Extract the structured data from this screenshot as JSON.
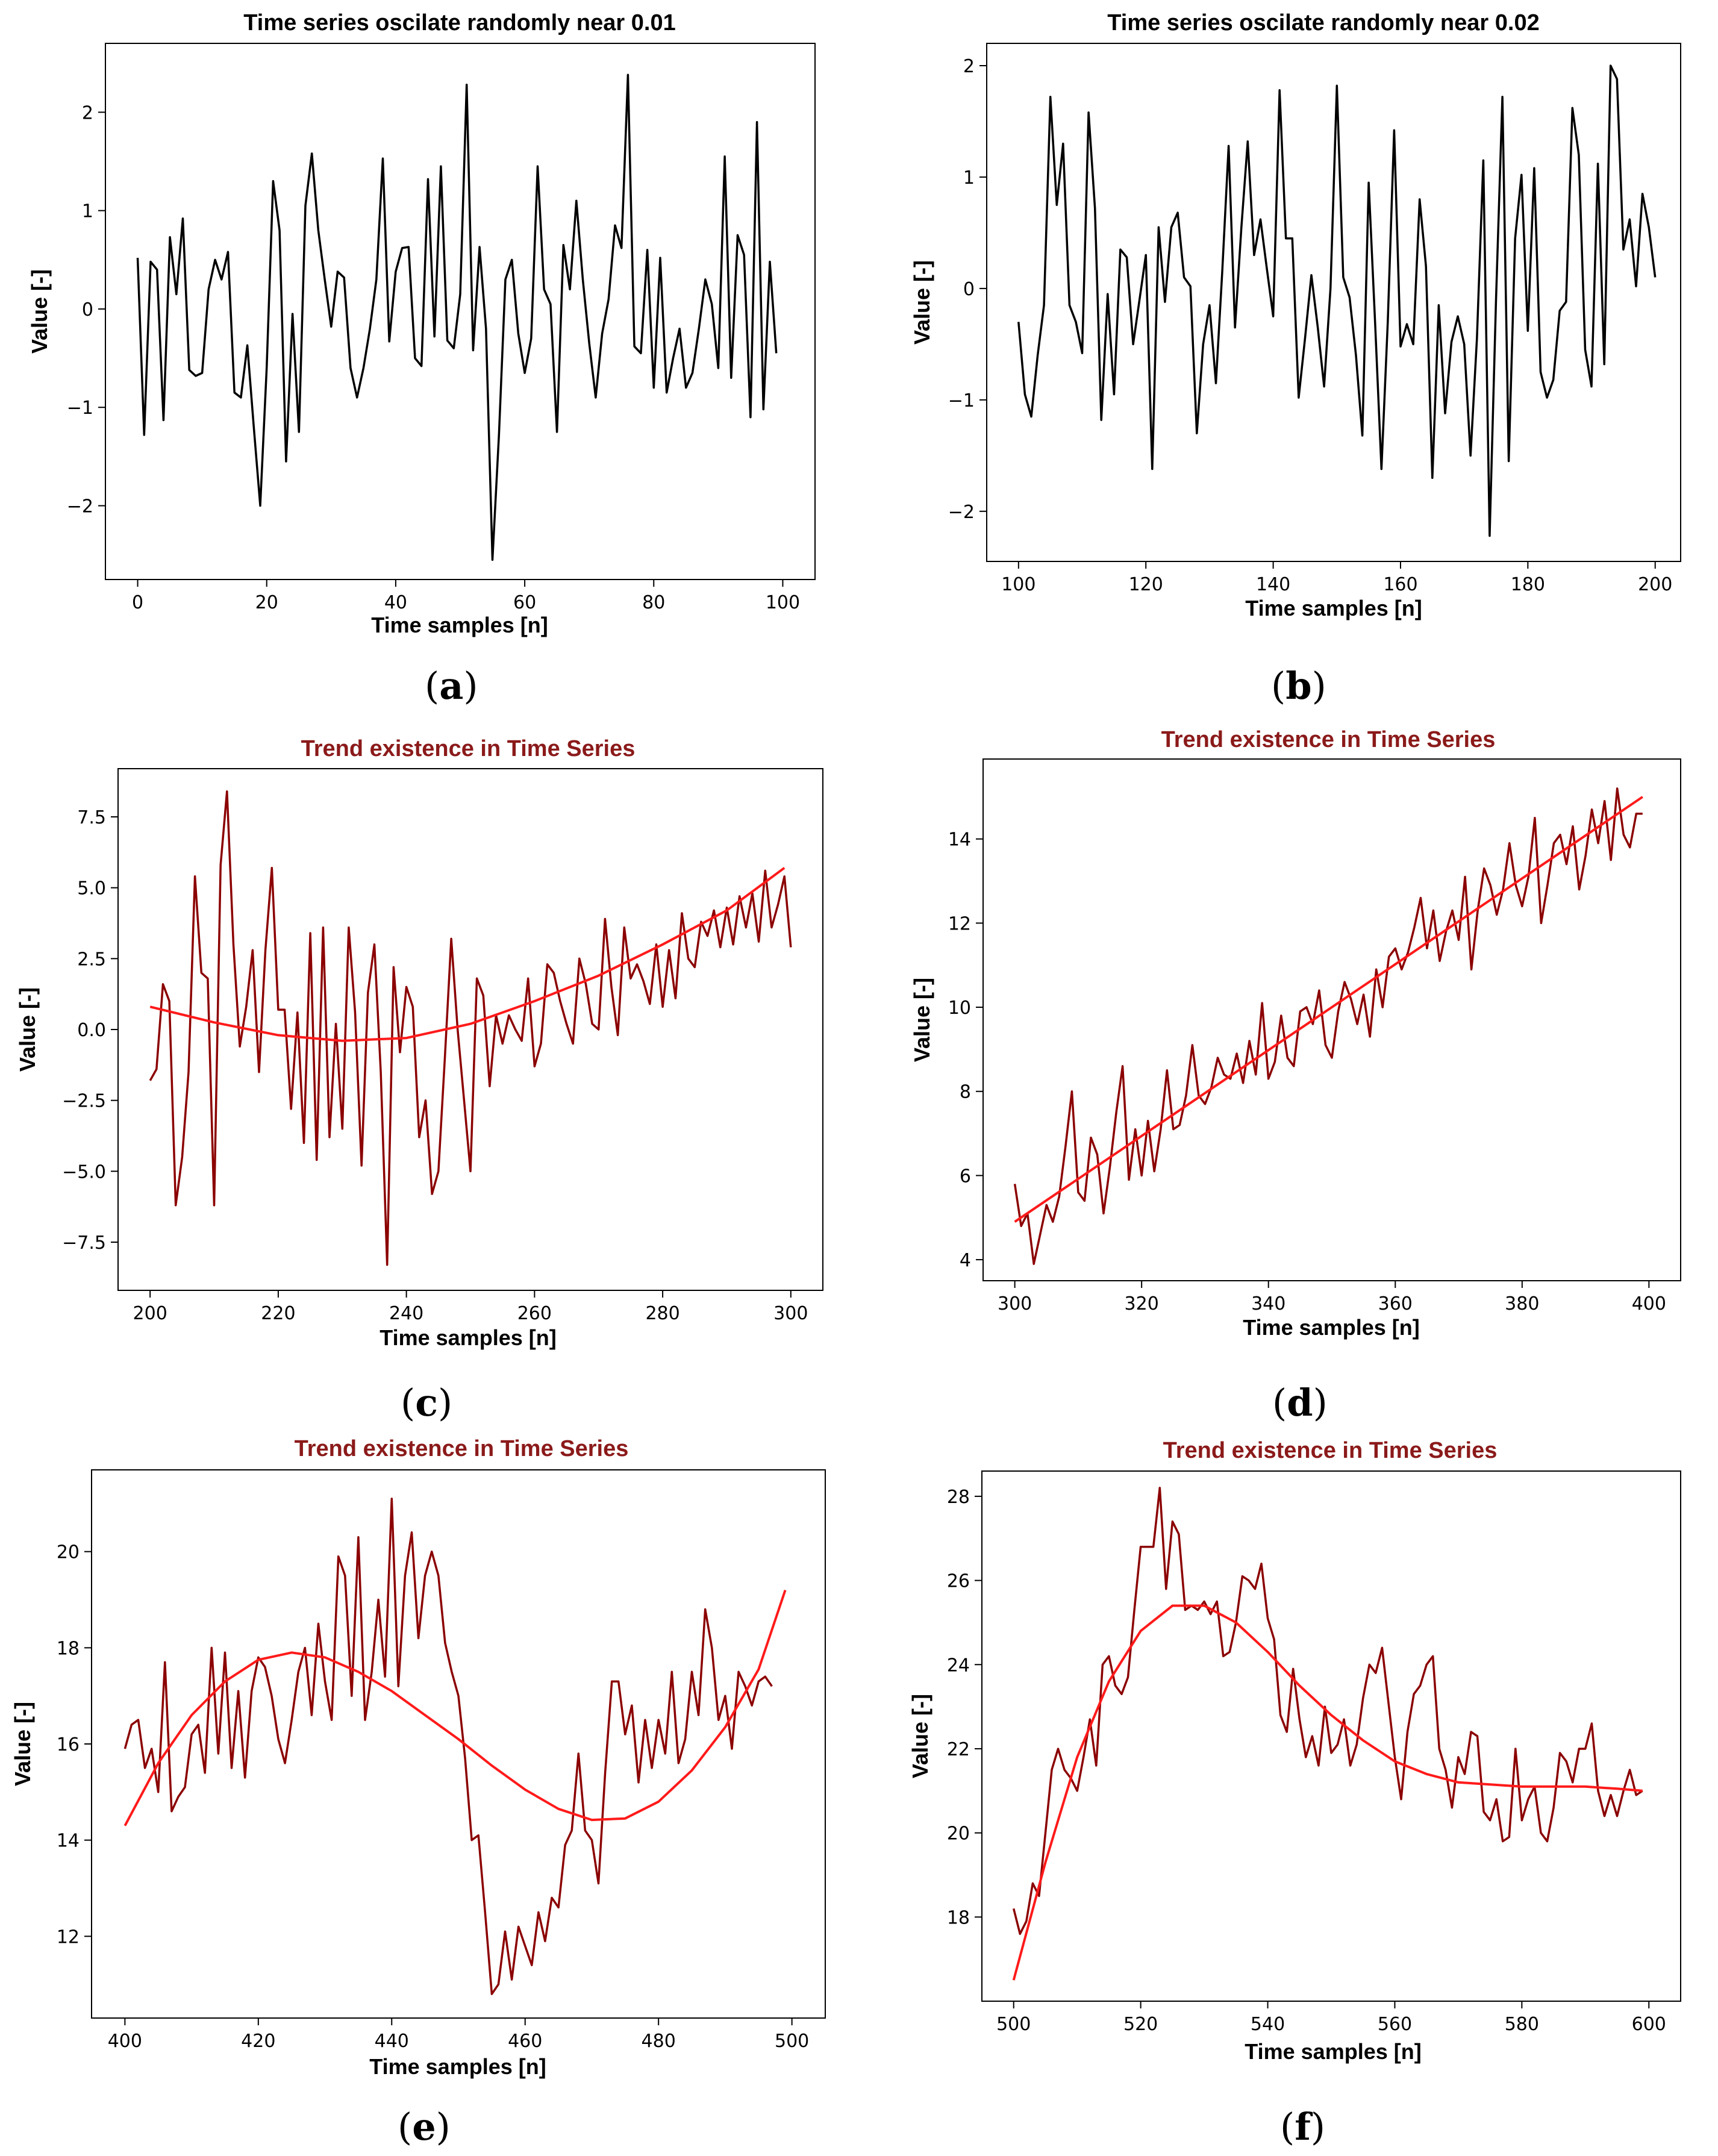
{
  "figure": {
    "colors": {
      "plain_line": "#000000",
      "data_line": "#8b0000",
      "trend_line": "#ff1a1a",
      "trend_title": "#8b1a1a"
    }
  },
  "chart_data": [
    {
      "id": "a",
      "panel_label": "a",
      "type": "line",
      "title": "Time series oscilate randomly near 0.01",
      "title_color": "#000000",
      "xlabel": "Time samples [n]",
      "ylabel": "Value [-]",
      "xlim": [
        -5,
        105
      ],
      "ylim": [
        -2.75,
        2.7
      ],
      "xticks": [
        0,
        20,
        40,
        60,
        80,
        100
      ],
      "yticks": [
        -2,
        -1,
        0,
        1,
        2
      ],
      "x_start": 0,
      "series": [
        {
          "name": "signal",
          "color": "#000000",
          "values": [
            0.52,
            -1.28,
            0.48,
            0.4,
            -1.13,
            0.73,
            0.15,
            0.92,
            -0.62,
            -0.68,
            -0.65,
            0.2,
            0.5,
            0.3,
            0.58,
            -0.85,
            -0.9,
            -0.37,
            -1.2,
            -2.0,
            -0.6,
            1.3,
            0.8,
            -1.55,
            -0.05,
            -1.25,
            1.05,
            1.58,
            0.8,
            0.3,
            -0.18,
            0.38,
            0.32,
            -0.6,
            -0.9,
            -0.6,
            -0.2,
            0.3,
            1.53,
            -0.33,
            0.38,
            0.62,
            0.63,
            -0.5,
            -0.58,
            1.32,
            -0.28,
            1.45,
            -0.32,
            -0.4,
            0.15,
            2.28,
            -0.42,
            0.63,
            -0.2,
            -2.55,
            -1.28,
            0.3,
            0.5,
            -0.25,
            -0.65,
            -0.3,
            1.45,
            0.2,
            0.05,
            -1.25,
            0.65,
            0.2,
            1.1,
            0.3,
            -0.35,
            -0.9,
            -0.25,
            0.1,
            0.85,
            0.62,
            2.38,
            -0.38,
            -0.45,
            0.6,
            -0.8,
            0.52,
            -0.85,
            -0.5,
            -0.2,
            -0.8,
            -0.65,
            -0.2,
            0.3,
            0.05,
            -0.6,
            1.55,
            -0.7,
            0.75,
            0.55,
            -1.1,
            1.9,
            -1.02,
            0.48,
            -0.45
          ]
        }
      ]
    },
    {
      "id": "b",
      "panel_label": "b",
      "type": "line",
      "title": "Time series oscilate randomly near 0.02",
      "title_color": "#000000",
      "xlabel": "Time samples [n]",
      "ylabel": "Value [-]",
      "xlim": [
        95,
        204
      ],
      "ylim": [
        -2.45,
        2.2
      ],
      "xticks": [
        100,
        120,
        140,
        160,
        180,
        200
      ],
      "yticks": [
        -2,
        -1,
        0,
        1,
        2
      ],
      "x_start": 100,
      "series": [
        {
          "name": "signal",
          "color": "#000000",
          "values": [
            -0.3,
            -0.95,
            -1.15,
            -0.6,
            -0.15,
            1.72,
            0.75,
            1.3,
            -0.15,
            -0.3,
            -0.58,
            1.58,
            0.72,
            -1.18,
            -0.05,
            -0.95,
            0.35,
            0.28,
            -0.5,
            -0.1,
            0.3,
            -1.62,
            0.55,
            -0.12,
            0.55,
            0.68,
            0.1,
            0.02,
            -1.3,
            -0.5,
            -0.15,
            -0.85,
            0.15,
            1.28,
            -0.35,
            0.55,
            1.32,
            0.3,
            0.62,
            0.18,
            -0.25,
            1.78,
            0.45,
            0.45,
            -0.98,
            -0.45,
            0.12,
            -0.35,
            -0.88,
            0.0,
            1.82,
            0.1,
            -0.08,
            -0.6,
            -1.32,
            0.95,
            -0.3,
            -1.62,
            -0.3,
            1.42,
            -0.52,
            -0.32,
            -0.5,
            0.8,
            0.2,
            -1.7,
            -0.15,
            -1.12,
            -0.48,
            -0.25,
            -0.5,
            -1.5,
            -0.45,
            1.15,
            -2.22,
            -0.1,
            1.72,
            -1.55,
            0.45,
            1.02,
            -0.38,
            1.08,
            -0.75,
            -0.98,
            -0.82,
            -0.2,
            -0.12,
            1.62,
            1.2,
            -0.55,
            -0.88,
            1.12,
            -0.68,
            2.0,
            1.88,
            0.35,
            0.62,
            0.02,
            0.85,
            0.55,
            0.1
          ]
        }
      ]
    },
    {
      "id": "c",
      "panel_label": "c",
      "type": "line",
      "title": "Trend existence in Time Series",
      "title_color": "#8b1a1a",
      "xlabel": "Time samples [n]",
      "ylabel": "Value [-]",
      "xlim": [
        195,
        305
      ],
      "ylim": [
        -9.2,
        9.2
      ],
      "xticks": [
        200,
        220,
        240,
        260,
        280,
        300
      ],
      "yticks": [
        -7.5,
        -5.0,
        -2.5,
        0.0,
        2.5,
        5.0,
        7.5
      ],
      "ytick_labels": [
        "−7.5",
        "−5.0",
        "−2.5",
        "0.0",
        "2.5",
        "5.0",
        "7.5"
      ],
      "x_start": 200,
      "series": [
        {
          "name": "observed",
          "color": "#8b0000",
          "values": [
            -1.8,
            -1.4,
            1.6,
            1.0,
            -6.2,
            -4.5,
            -1.5,
            5.4,
            2.0,
            1.8,
            -6.2,
            5.8,
            8.4,
            3.0,
            -0.6,
            0.8,
            2.8,
            -1.5,
            2.8,
            5.7,
            0.7,
            0.7,
            -2.8,
            0.6,
            -4.0,
            3.4,
            -4.6,
            3.6,
            -3.8,
            0.2,
            -3.5,
            3.6,
            0.6,
            -4.8,
            1.3,
            3.0,
            -1.5,
            -8.3,
            2.2,
            -0.8,
            1.5,
            0.8,
            -3.8,
            -2.5,
            -5.8,
            -5.0,
            -1.0,
            3.2,
            0.0,
            -2.5,
            -5.0,
            1.8,
            1.2,
            -2.0,
            0.5,
            -0.5,
            0.5,
            0.0,
            -0.4,
            1.8,
            -1.3,
            -0.5,
            2.3,
            2.0,
            1.0,
            0.2,
            -0.5,
            2.5,
            1.6,
            0.2,
            0.0,
            3.9,
            1.5,
            -0.2,
            3.6,
            1.8,
            2.3,
            1.7,
            0.9,
            3.0,
            0.8,
            2.8,
            1.1,
            4.1,
            2.5,
            2.2,
            3.8,
            3.3,
            4.2,
            2.9,
            4.3,
            3.0,
            4.7,
            3.6,
            4.8,
            3.1,
            5.6,
            3.6,
            4.4,
            5.4,
            2.9
          ]
        },
        {
          "name": "trend",
          "color": "#ff1a1a",
          "points": [
            [
              200,
              0.8
            ],
            [
              210,
              0.25
            ],
            [
              220,
              -0.2
            ],
            [
              230,
              -0.4
            ],
            [
              240,
              -0.3
            ],
            [
              250,
              0.2
            ],
            [
              260,
              1.0
            ],
            [
              270,
              1.9
            ],
            [
              280,
              3.0
            ],
            [
              290,
              4.2
            ],
            [
              299,
              5.7
            ]
          ]
        }
      ]
    },
    {
      "id": "d",
      "panel_label": "d",
      "type": "line",
      "title": "Trend existence in Time Series",
      "title_color": "#8b1a1a",
      "xlabel": "Time samples [n]",
      "ylabel": "Value [-]",
      "xlim": [
        295,
        405
      ],
      "ylim": [
        3.5,
        15.9
      ],
      "xticks": [
        300,
        320,
        340,
        360,
        380,
        400
      ],
      "yticks": [
        4,
        6,
        8,
        10,
        12,
        14
      ],
      "x_start": 300,
      "series": [
        {
          "name": "observed",
          "color": "#8b0000",
          "values": [
            5.8,
            4.8,
            5.1,
            3.9,
            4.6,
            5.3,
            4.9,
            5.5,
            6.7,
            8.0,
            5.6,
            5.4,
            6.9,
            6.5,
            5.1,
            6.2,
            7.5,
            8.6,
            5.9,
            7.1,
            6.0,
            7.3,
            6.1,
            7.1,
            8.5,
            7.1,
            7.2,
            7.9,
            9.1,
            7.9,
            7.7,
            8.1,
            8.8,
            8.4,
            8.3,
            8.9,
            8.2,
            9.2,
            8.4,
            10.1,
            8.3,
            8.7,
            9.8,
            8.8,
            8.6,
            9.9,
            10.0,
            9.6,
            10.4,
            9.1,
            8.8,
            9.9,
            10.6,
            10.2,
            9.6,
            10.3,
            9.3,
            10.9,
            10.0,
            11.2,
            11.4,
            10.9,
            11.3,
            11.9,
            12.6,
            11.4,
            12.3,
            11.1,
            11.8,
            12.3,
            11.6,
            13.1,
            10.9,
            12.3,
            13.3,
            12.9,
            12.2,
            12.8,
            13.9,
            12.9,
            12.4,
            13.1,
            14.5,
            12.0,
            12.9,
            13.9,
            14.1,
            13.4,
            14.3,
            12.8,
            13.6,
            14.7,
            13.9,
            14.9,
            13.5,
            15.2,
            14.1,
            13.8,
            14.6,
            14.6
          ]
        },
        {
          "name": "trend",
          "color": "#ff1a1a",
          "points": [
            [
              300,
              4.9
            ],
            [
              399,
              15.0
            ]
          ]
        }
      ]
    },
    {
      "id": "e",
      "panel_label": "e",
      "type": "line",
      "title": "Trend existence in Time Series",
      "title_color": "#8b1a1a",
      "xlabel": "Time samples [n]",
      "ylabel": "Value [-]",
      "xlim": [
        395,
        505
      ],
      "ylim": [
        10.3,
        21.7
      ],
      "xticks": [
        400,
        420,
        440,
        460,
        480,
        500
      ],
      "yticks": [
        12,
        14,
        16,
        18,
        20
      ],
      "x_start": 400,
      "series": [
        {
          "name": "observed",
          "color": "#8b0000",
          "values": [
            15.9,
            16.4,
            16.5,
            15.5,
            15.9,
            15.0,
            17.7,
            14.6,
            14.9,
            15.1,
            16.2,
            16.4,
            15.4,
            18.0,
            15.8,
            17.9,
            15.5,
            17.1,
            15.3,
            17.1,
            17.8,
            17.6,
            17.0,
            16.1,
            15.6,
            16.5,
            17.5,
            18.0,
            16.6,
            18.5,
            17.3,
            16.5,
            19.9,
            19.5,
            17.0,
            20.3,
            16.5,
            17.5,
            19.0,
            17.4,
            21.1,
            17.2,
            19.5,
            20.4,
            18.2,
            19.5,
            20.0,
            19.5,
            18.1,
            17.5,
            17.0,
            15.7,
            14.0,
            14.1,
            12.5,
            10.8,
            11.0,
            12.1,
            11.1,
            12.2,
            11.8,
            11.4,
            12.5,
            11.9,
            12.8,
            12.6,
            13.9,
            14.2,
            15.8,
            14.2,
            14.0,
            13.1,
            15.4,
            17.3,
            17.3,
            16.2,
            16.8,
            15.2,
            16.5,
            15.5,
            16.5,
            15.8,
            17.5,
            15.6,
            16.1,
            17.5,
            16.6,
            18.8,
            18.0,
            16.5,
            17.0,
            15.9,
            17.5,
            17.2,
            16.8,
            17.3,
            17.4,
            17.2
          ]
        },
        {
          "name": "trend",
          "color": "#ff1a1a",
          "points": [
            [
              400,
              14.3
            ],
            [
              405,
              15.6
            ],
            [
              410,
              16.6
            ],
            [
              415,
              17.3
            ],
            [
              420,
              17.75
            ],
            [
              425,
              17.9
            ],
            [
              430,
              17.8
            ],
            [
              435,
              17.5
            ],
            [
              440,
              17.1
            ],
            [
              445,
              16.6
            ],
            [
              450,
              16.1
            ],
            [
              455,
              15.55
            ],
            [
              460,
              15.05
            ],
            [
              465,
              14.65
            ],
            [
              470,
              14.42
            ],
            [
              475,
              14.45
            ],
            [
              480,
              14.8
            ],
            [
              485,
              15.45
            ],
            [
              490,
              16.35
            ],
            [
              495,
              17.55
            ],
            [
              499,
              19.2
            ]
          ]
        }
      ]
    },
    {
      "id": "f",
      "panel_label": "f",
      "type": "line",
      "title": "Trend existence in Time Series",
      "title_color": "#8b1a1a",
      "xlabel": "Time samples [n]",
      "ylabel": "Value [-]",
      "xlim": [
        495,
        605
      ],
      "ylim": [
        16.0,
        28.6
      ],
      "xticks": [
        500,
        520,
        540,
        560,
        580,
        600
      ],
      "yticks": [
        18,
        20,
        22,
        24,
        26,
        28
      ],
      "x_start": 500,
      "series": [
        {
          "name": "observed",
          "color": "#8b0000",
          "values": [
            18.2,
            17.6,
            17.9,
            18.8,
            18.5,
            20.0,
            21.5,
            22.0,
            21.5,
            21.3,
            21.0,
            21.8,
            22.7,
            21.6,
            24.0,
            24.2,
            23.5,
            23.3,
            23.7,
            25.3,
            26.8,
            26.8,
            26.8,
            28.2,
            25.8,
            27.4,
            27.1,
            25.3,
            25.4,
            25.3,
            25.5,
            25.2,
            25.5,
            24.2,
            24.3,
            25.0,
            26.1,
            26.0,
            25.8,
            26.4,
            25.1,
            24.6,
            22.8,
            22.4,
            23.9,
            22.7,
            21.8,
            22.3,
            21.6,
            23.0,
            21.9,
            22.1,
            22.7,
            21.6,
            22.1,
            23.2,
            24.0,
            23.8,
            24.4,
            23.1,
            21.8,
            20.8,
            22.4,
            23.3,
            23.5,
            24.0,
            24.2,
            22.0,
            21.5,
            20.6,
            21.8,
            21.4,
            22.4,
            22.3,
            20.5,
            20.3,
            20.8,
            19.8,
            19.9,
            22.0,
            20.3,
            20.8,
            21.1,
            20.0,
            19.8,
            20.6,
            21.9,
            21.7,
            21.2,
            22.0,
            22.0,
            22.6,
            21.0,
            20.4,
            20.9,
            20.4,
            21.0,
            21.5,
            20.9,
            21.0
          ]
        },
        {
          "name": "trend",
          "color": "#ff1a1a",
          "points": [
            [
              500,
              16.5
            ],
            [
              505,
              19.3
            ],
            [
              510,
              21.8
            ],
            [
              515,
              23.6
            ],
            [
              520,
              24.8
            ],
            [
              525,
              25.4
            ],
            [
              530,
              25.4
            ],
            [
              535,
              25.0
            ],
            [
              540,
              24.3
            ],
            [
              545,
              23.5
            ],
            [
              550,
              22.8
            ],
            [
              555,
              22.2
            ],
            [
              560,
              21.7
            ],
            [
              565,
              21.4
            ],
            [
              570,
              21.2
            ],
            [
              575,
              21.15
            ],
            [
              580,
              21.1
            ],
            [
              585,
              21.1
            ],
            [
              590,
              21.1
            ],
            [
              595,
              21.05
            ],
            [
              599,
              21.0
            ]
          ]
        }
      ]
    }
  ]
}
